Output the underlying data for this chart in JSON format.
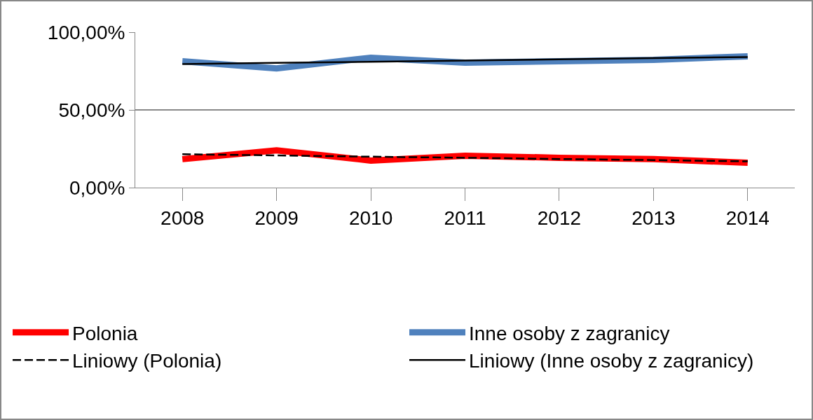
{
  "chart_data": {
    "type": "line",
    "categories": [
      "2008",
      "2009",
      "2010",
      "2011",
      "2012",
      "2013",
      "2014"
    ],
    "series": [
      {
        "name": "Polonia",
        "color": "#ff0000",
        "values": [
          18.3,
          24,
          17.4,
          20.5,
          19.2,
          18.3,
          16
        ]
      },
      {
        "name": "Inne osoby z zagranicy",
        "color": "#4f81bd",
        "values": [
          81.3,
          76.7,
          83.6,
          80.4,
          81.3,
          82.2,
          84.5
        ]
      },
      {
        "name": "Liniowy (Polonia)",
        "color": "#000000",
        "type": "line",
        "values": [
          21.5,
          20.7,
          19.9,
          19.2,
          18.4,
          17.7,
          16.9
        ],
        "line_style": "dashed"
      },
      {
        "name": "Liniowy (Inne osoby z zagranicy)",
        "color": "#000000",
        "type": "line",
        "values": [
          79.5,
          80.3,
          81,
          81.8,
          82.5,
          83.3,
          84
        ],
        "line_style": "solid"
      }
    ],
    "ylim": [
      0,
      100
    ],
    "yticks": [
      {
        "value": 0,
        "label": "0,00%"
      },
      {
        "value": 50,
        "label": "50,00%"
      },
      {
        "value": 100,
        "label": "100,00%"
      }
    ],
    "grid": "y",
    "legend": "bottom",
    "marker": "none",
    "line_style": "solid"
  }
}
